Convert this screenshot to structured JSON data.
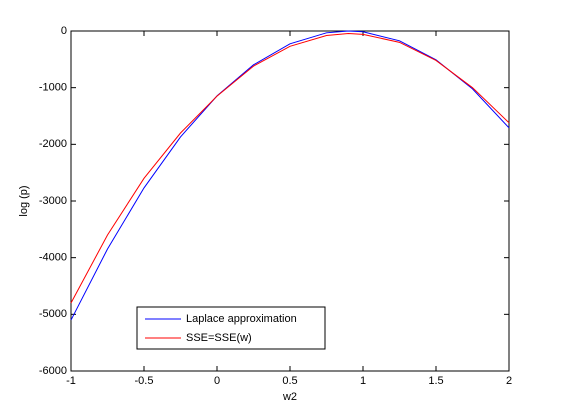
{
  "chart_data": {
    "type": "line",
    "xlabel": "w2",
    "ylabel": "log (p)",
    "x": [
      -1,
      -0.75,
      -0.5,
      -0.25,
      0,
      0.25,
      0.5,
      0.75,
      0.9,
      1,
      1.25,
      1.5,
      1.75,
      2
    ],
    "series": [
      {
        "name": "Laplace approximation",
        "color": "#0000ff",
        "values": [
          -5101,
          -3847,
          -2769,
          -1869,
          -1145,
          -597,
          -226,
          -32,
          0,
          -14,
          -173,
          -509,
          -1021,
          -1709
        ]
      },
      {
        "name": "SSE=SSE(w)",
        "color": "#ff0000",
        "values": [
          -4800,
          -3600,
          -2600,
          -1800,
          -1150,
          -620,
          -270,
          -80,
          -45,
          -60,
          -200,
          -520,
          -1000,
          -1620
        ]
      }
    ],
    "xlim": [
      -1,
      2
    ],
    "xticks": [
      -1,
      -0.5,
      0,
      0.5,
      1,
      1.5,
      2
    ],
    "ylim": [
      -6000,
      0
    ],
    "yticks": [
      -6000,
      -5000,
      -4000,
      -3000,
      -2000,
      -1000,
      0
    ],
    "grid": false,
    "legend": "bottom-left"
  }
}
